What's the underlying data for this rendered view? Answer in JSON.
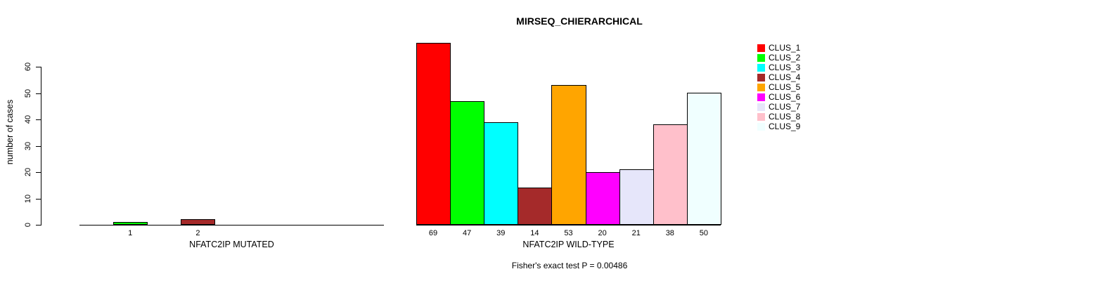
{
  "title": "MIRSEQ_CHIERARCHICAL",
  "footer": "Fisher's exact test P = 0.00486",
  "chart_data": {
    "type": "bar",
    "title": "MIRSEQ_CHIERARCHICAL",
    "ylabel": "number of cases",
    "xlabel": "",
    "ylim": [
      0,
      60
    ],
    "yticks": [
      0,
      10,
      20,
      30,
      40,
      50,
      60
    ],
    "grid": false,
    "legend_position": "right",
    "clusters": [
      "CLUS_1",
      "CLUS_2",
      "CLUS_3",
      "CLUS_4",
      "CLUS_5",
      "CLUS_6",
      "CLUS_7",
      "CLUS_8",
      "CLUS_9"
    ],
    "cluster_colors": [
      "#FF0000",
      "#00FF00",
      "#00FFFF",
      "#A52A2A",
      "#FFA500",
      "#FF00FF",
      "#E6E6FA",
      "#FFC0CB",
      "#F0FFFF"
    ],
    "panels": [
      {
        "xlabel": "NFATC2IP MUTATED",
        "values": [
          0,
          1,
          0,
          2,
          0,
          0,
          0,
          0,
          0
        ],
        "visible_bar_labels": [
          "1",
          "2"
        ]
      },
      {
        "xlabel": "NFATC2IP WILD-TYPE",
        "values": [
          69,
          47,
          39,
          14,
          53,
          20,
          21,
          38,
          50
        ],
        "visible_bar_labels": [
          "69",
          "47",
          "39",
          "14",
          "53",
          "20",
          "21",
          "38",
          "50"
        ]
      }
    ],
    "annotation": "Fisher's exact test P = 0.00486"
  },
  "legend": {
    "items": [
      {
        "label": "CLUS_1",
        "color": "#FF0000"
      },
      {
        "label": "CLUS_2",
        "color": "#00FF00"
      },
      {
        "label": "CLUS_3",
        "color": "#00FFFF"
      },
      {
        "label": "CLUS_4",
        "color": "#A52A2A"
      },
      {
        "label": "CLUS_5",
        "color": "#FFA500"
      },
      {
        "label": "CLUS_6",
        "color": "#FF00FF"
      },
      {
        "label": "CLUS_7",
        "color": "#E6E6FA"
      },
      {
        "label": "CLUS_8",
        "color": "#FFC0CB"
      },
      {
        "label": "CLUS_9",
        "color": "#F0FFFF"
      }
    ]
  }
}
